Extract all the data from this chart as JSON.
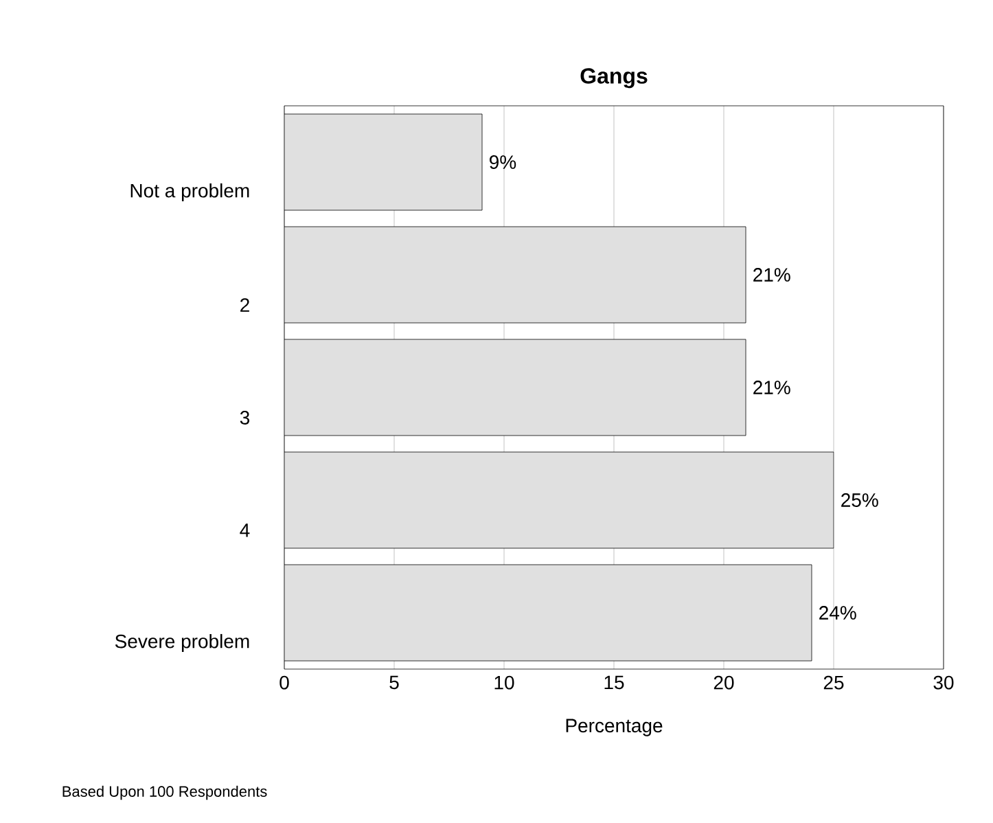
{
  "chart_data": {
    "type": "bar",
    "orientation": "horizontal",
    "title": "Gangs",
    "xlabel": "Percentage",
    "categories": [
      "Not a problem",
      "2",
      "3",
      "4",
      "Severe problem"
    ],
    "values": [
      9,
      21,
      21,
      25,
      24
    ],
    "value_labels": [
      "9%",
      "21%",
      "21%",
      "25%",
      "24%"
    ],
    "color": "#e0e0e0",
    "xlim": [
      0,
      30
    ],
    "xticks": [
      0,
      5,
      10,
      15,
      20,
      25,
      30
    ],
    "grid": "x",
    "annotations": [
      "Based Upon 100 Respondents"
    ]
  }
}
